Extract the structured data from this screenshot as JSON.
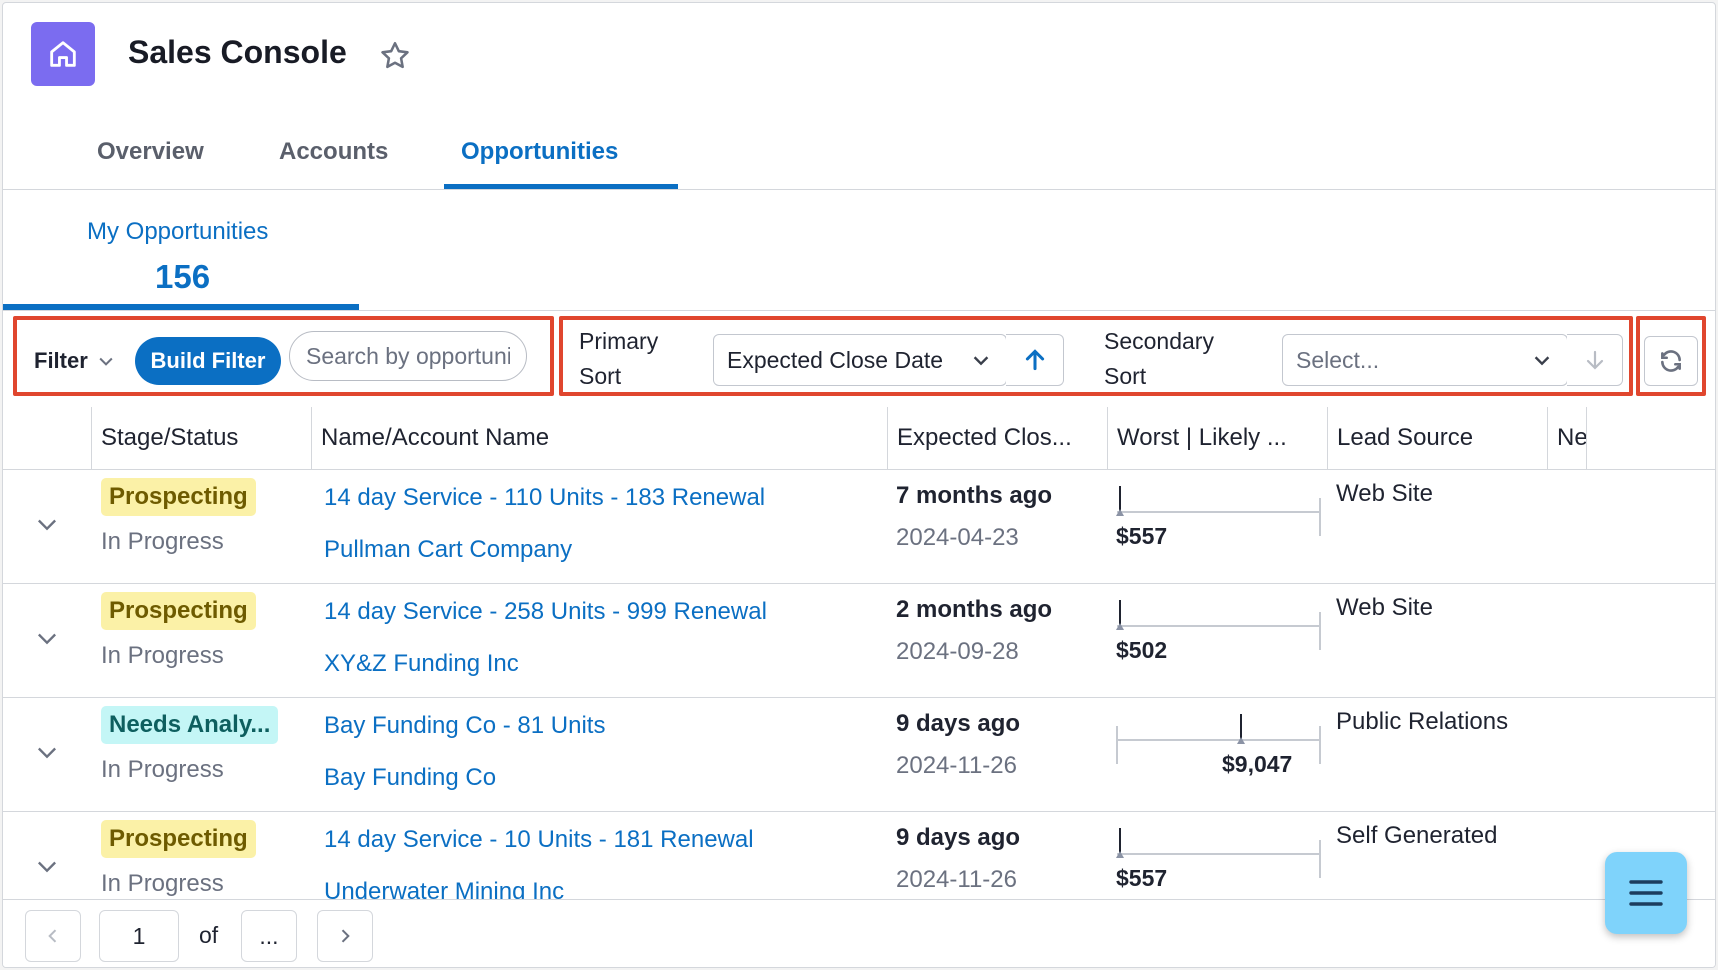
{
  "app": {
    "title": "Sales Console",
    "icon": "home-icon"
  },
  "tabs": [
    {
      "label": "Overview",
      "active": false
    },
    {
      "label": "Accounts",
      "active": false
    },
    {
      "label": "Opportunities",
      "active": true
    }
  ],
  "list_view": {
    "label": "My Opportunities",
    "count": "156"
  },
  "toolbar": {
    "filter_label": "Filter",
    "build_filter_label": "Build Filter",
    "search_placeholder": "Search by opportunity",
    "primary_sort_label": [
      "Primary",
      "Sort"
    ],
    "primary_sort_value": "Expected Close Date",
    "primary_sort_direction": "ascending",
    "secondary_sort_label": [
      "Secondary",
      "Sort"
    ],
    "secondary_sort_placeholder": "Select...",
    "secondary_sort_direction": "descending (disabled)"
  },
  "table": {
    "columns": [
      "Stage/Status",
      "Name/Account Name",
      "Expected Clos...",
      "Worst | Likely ...",
      "Lead Source",
      "Ne"
    ],
    "rows": [
      {
        "stage": "Prospecting",
        "stage_color": "#fbf1a7",
        "status": "In Progress",
        "name": "14 day Service - 110 Units - 183 Renewal",
        "account": "Pullman Cart Company",
        "close_relative": "7 months ago",
        "close_date": "2024-04-23",
        "forecast": "$557",
        "likely_fraction": 0.0,
        "lead_source": "Web Site"
      },
      {
        "stage": "Prospecting",
        "stage_color": "#fbf1a7",
        "status": "In Progress",
        "name": "14 day Service - 258 Units - 999 Renewal",
        "account": "XY&Z Funding Inc",
        "close_relative": "2 months ago",
        "close_date": "2024-09-28",
        "forecast": "$502",
        "likely_fraction": 0.0,
        "lead_source": "Web Site"
      },
      {
        "stage": "Needs Analy...",
        "stage_color": "#c4f6f6",
        "status": "In Progress",
        "name": "Bay Funding Co - 81 Units",
        "account": "Bay Funding Co",
        "close_relative": "9 days ago",
        "close_date": "2024-11-26",
        "forecast": "$9,047",
        "likely_fraction": 0.6,
        "lead_source": "Public Relations"
      },
      {
        "stage": "Prospecting",
        "stage_color": "#fbf1a7",
        "status": "In Progress",
        "name": "14 day Service - 10 Units - 181 Renewal",
        "account": "Underwater Mining Inc",
        "close_relative": "9 days ago",
        "close_date": "2024-11-26",
        "forecast": "$557",
        "likely_fraction": 0.0,
        "lead_source": "Self Generated"
      }
    ]
  },
  "pagination": {
    "current_page": "1",
    "of_label": "of",
    "total_pages": "..."
  },
  "fab": {
    "icon": "menu-icon"
  },
  "colors": {
    "accent": "#0b6fc3",
    "app_icon": "#7b6cf0",
    "highlight": "#e0462e"
  }
}
